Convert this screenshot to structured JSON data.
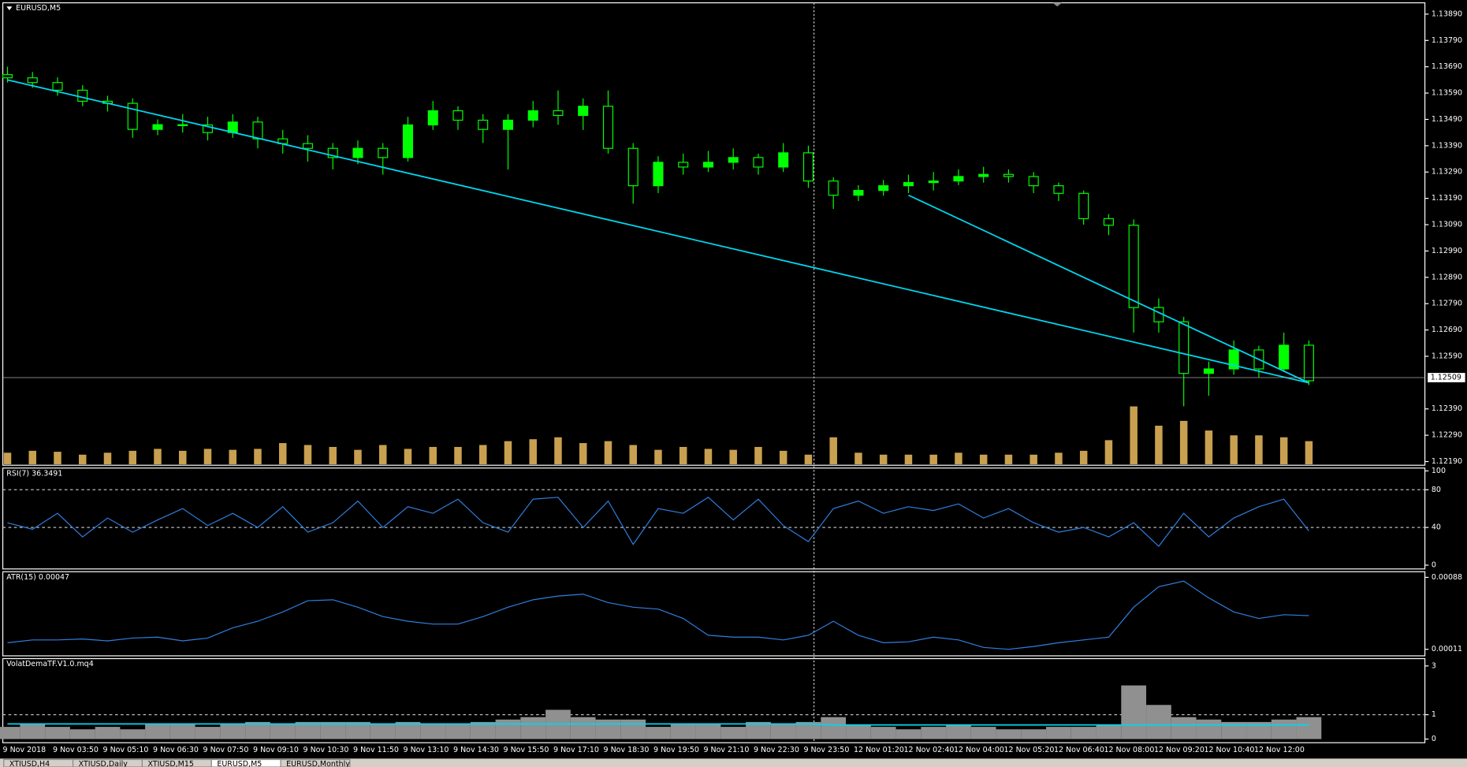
{
  "chart_data": [
    {
      "type": "candlestick",
      "title": "EURUSD,M5",
      "color": "#00ff00",
      "categories": [
        "9 Nov 2018",
        null,
        "9 Nov 03:50",
        null,
        "9 Nov 05:10",
        null,
        "9 Nov 06:30",
        null,
        "9 Nov 07:50",
        null,
        "9 Nov 09:10",
        null,
        "9 Nov 10:30",
        null,
        "9 Nov 11:50",
        null,
        "9 Nov 13:10",
        null,
        "9 Nov 14:30",
        null,
        "9 Nov 15:50",
        null,
        "9 Nov 17:10",
        null,
        "9 Nov 18:30",
        null,
        "9 Nov 19:50",
        null,
        "9 Nov 21:10",
        null,
        "9 Nov 22:30",
        null,
        "9 Nov 23:50",
        null,
        "12 Nov 01:20",
        null,
        "12 Nov 02:40",
        null,
        "12 Nov 04:00",
        null,
        "12 Nov 05:20",
        null,
        "12 Nov 06:40",
        null,
        "12 Nov 08:00",
        null,
        "12 Nov 09:20",
        null,
        "12 Nov 10:40",
        null,
        "12 Nov 12:00",
        null,
        null
      ],
      "open": [
        1.1366,
        1.13648,
        1.1363,
        1.13601,
        1.13559,
        1.13551,
        1.13452,
        1.1347,
        1.13469,
        1.1344,
        1.1348,
        1.13416,
        1.13398,
        1.1338,
        1.13345,
        1.1338,
        1.13345,
        1.13469,
        1.13523,
        1.13487,
        1.13452,
        1.13487,
        1.13523,
        1.13505,
        1.1354,
        1.1338,
        1.13238,
        1.13327,
        1.13309,
        1.13327,
        1.13345,
        1.13309,
        1.13363,
        1.13256,
        1.13202,
        1.1322,
        1.13238,
        1.1325,
        1.13256,
        1.13273,
        1.13281,
        1.13273,
        1.13238,
        1.13209,
        1.13113,
        1.13088,
        1.12775,
        1.12721,
        1.12525,
        1.12542,
        1.12614,
        1.12542,
        1.12632
      ],
      "high": [
        1.1369,
        1.1367,
        1.1365,
        1.1362,
        1.1358,
        1.1357,
        1.1349,
        1.1351,
        1.135,
        1.1351,
        1.135,
        1.1345,
        1.1343,
        1.134,
        1.1341,
        1.134,
        1.135,
        1.1356,
        1.1354,
        1.1351,
        1.1351,
        1.1356,
        1.136,
        1.1357,
        1.136,
        1.134,
        1.1335,
        1.1336,
        1.1337,
        1.1338,
        1.1336,
        1.134,
        1.1339,
        1.1327,
        1.1324,
        1.1326,
        1.1328,
        1.1329,
        1.133,
        1.1331,
        1.133,
        1.1329,
        1.1325,
        1.1322,
        1.1313,
        1.1311,
        1.1281,
        1.1274,
        1.1257,
        1.1265,
        1.1263,
        1.1268,
        1.1265
      ],
      "low": [
        1.1363,
        1.1361,
        1.1358,
        1.1354,
        1.1352,
        1.1342,
        1.1343,
        1.1344,
        1.1341,
        1.1342,
        1.1338,
        1.1336,
        1.1333,
        1.133,
        1.1332,
        1.1328,
        1.1333,
        1.1345,
        1.1345,
        1.134,
        1.133,
        1.1346,
        1.1347,
        1.1345,
        1.1336,
        1.1317,
        1.1321,
        1.1328,
        1.1329,
        1.133,
        1.1328,
        1.1329,
        1.1323,
        1.1315,
        1.1318,
        1.132,
        1.1321,
        1.1322,
        1.1324,
        1.1325,
        1.1325,
        1.1321,
        1.1318,
        1.1309,
        1.1305,
        1.1268,
        1.1268,
        1.124,
        1.1244,
        1.1252,
        1.1251,
        1.1253,
        1.1248
      ],
      "close": [
        1.13648,
        1.1363,
        1.13601,
        1.13559,
        1.13551,
        1.13452,
        1.1347,
        1.13469,
        1.1344,
        1.1348,
        1.13416,
        1.13398,
        1.1338,
        1.13345,
        1.1338,
        1.13345,
        1.13469,
        1.13523,
        1.13487,
        1.13452,
        1.13487,
        1.13523,
        1.13505,
        1.1354,
        1.1338,
        1.13238,
        1.13327,
        1.13309,
        1.13327,
        1.13345,
        1.13309,
        1.13363,
        1.13256,
        1.13202,
        1.1322,
        1.13238,
        1.1325,
        1.13256,
        1.13273,
        1.13281,
        1.13273,
        1.13238,
        1.13209,
        1.13113,
        1.13088,
        1.12775,
        1.12721,
        1.12525,
        1.12542,
        1.12614,
        1.12542,
        1.12632,
        1.12497
      ],
      "volume": [
        120,
        140,
        130,
        100,
        120,
        140,
        160,
        140,
        160,
        150,
        160,
        220,
        200,
        180,
        150,
        200,
        160,
        180,
        180,
        200,
        240,
        260,
        280,
        220,
        240,
        200,
        150,
        180,
        160,
        150,
        180,
        140,
        100,
        280,
        120,
        100,
        100,
        100,
        120,
        100,
        100,
        100,
        120,
        140,
        250,
        600,
        400,
        450,
        350,
        300,
        300,
        280,
        240
      ],
      "volume_color": "#c8a050",
      "ylim": [
        1.12176,
        1.13933
      ],
      "yticks": [
        {
          "value": 1.1389,
          "label": "1.13890"
        },
        {
          "value": 1.1379,
          "label": "1.13790"
        },
        {
          "value": 1.1369,
          "label": "1.13690"
        },
        {
          "value": 1.1359,
          "label": "1.13590"
        },
        {
          "value": 1.1349,
          "label": "1.13490"
        },
        {
          "value": 1.1339,
          "label": "1.13390"
        },
        {
          "value": 1.1329,
          "label": "1.13290"
        },
        {
          "value": 1.1319,
          "label": "1.13190"
        },
        {
          "value": 1.1309,
          "label": "1.13090"
        },
        {
          "value": 1.1299,
          "label": "1.12990"
        },
        {
          "value": 1.1289,
          "label": "1.12890"
        },
        {
          "value": 1.1279,
          "label": "1.12790"
        },
        {
          "value": 1.1269,
          "label": "1.12690"
        },
        {
          "value": 1.1259,
          "label": "1.12590"
        },
        {
          "value": 1.1239,
          "label": "1.12390"
        },
        {
          "value": 1.1229,
          "label": "1.12290"
        },
        {
          "value": 1.1219,
          "label": "1.12190"
        }
      ],
      "current_price": {
        "value": 1.12509,
        "label": "1.12509"
      },
      "trendlines": [
        {
          "from": [
            0,
            1.1364
          ],
          "to": [
            52,
            1.12489
          ],
          "color": "#00d7f0"
        },
        {
          "from": [
            36,
            1.13202
          ],
          "to": [
            52,
            1.12489
          ],
          "color": "#00d7f0"
        }
      ]
    },
    {
      "type": "line",
      "title": "RSI(7) 36.3491",
      "color": "#2f7fe0",
      "grid": "dashed",
      "values": [
        45,
        38,
        55,
        30,
        50,
        35,
        48,
        60,
        42,
        55,
        40,
        62,
        35,
        45,
        68,
        40,
        62,
        55,
        70,
        45,
        35,
        70,
        72,
        40,
        68,
        22,
        60,
        55,
        72,
        48,
        70,
        42,
        25,
        60,
        68,
        55,
        62,
        58,
        65,
        50,
        60,
        45,
        35,
        40,
        30,
        45,
        20,
        55,
        30,
        50,
        62,
        70,
        36.3491
      ],
      "ylim": [
        -4,
        103
      ],
      "yticks": [
        0,
        40,
        80,
        100
      ]
    },
    {
      "type": "line",
      "title": "ATR(15) 0.00047",
      "color": "#2f7fe0",
      "values": [
        0.00018,
        0.00021,
        0.00021,
        0.00022,
        0.0002,
        0.00023,
        0.00024,
        0.0002,
        0.00023,
        0.00034,
        0.00041,
        0.00051,
        0.00063,
        0.00064,
        0.00056,
        0.00046,
        0.00041,
        0.00038,
        0.00038,
        0.00046,
        0.00056,
        0.00064,
        0.00068,
        0.0007,
        0.00061,
        0.00056,
        0.00054,
        0.00044,
        0.00026,
        0.00024,
        0.00024,
        0.00021,
        0.00026,
        0.00041,
        0.00026,
        0.00018,
        0.00019,
        0.00024,
        0.00021,
        0.00013,
        0.00011,
        0.00014,
        0.00018,
        0.00021,
        0.00024,
        0.00056,
        0.00078,
        0.00084,
        0.00066,
        0.00051,
        0.00044,
        0.00048,
        0.00047
      ],
      "ylim": [
        4e-05,
        0.00094
      ],
      "yticks": [
        0.00011,
        0.00088
      ]
    },
    {
      "type": "histogram",
      "title": "VolatDemaTF.V1.0.mq4",
      "color": "#909090",
      "grid": "dashed",
      "values": [
        0.5,
        0.6,
        0.5,
        0.4,
        0.5,
        0.4,
        0.6,
        0.6,
        0.5,
        0.6,
        0.7,
        0.6,
        0.7,
        0.7,
        0.7,
        0.6,
        0.7,
        0.6,
        0.6,
        0.7,
        0.8,
        0.9,
        1.2,
        0.9,
        0.8,
        0.8,
        0.5,
        0.6,
        0.6,
        0.5,
        0.7,
        0.6,
        0.7,
        0.9,
        0.6,
        0.5,
        0.4,
        0.5,
        0.6,
        0.5,
        0.4,
        0.4,
        0.5,
        0.5,
        0.6,
        2.2,
        1.4,
        0.9,
        0.8,
        0.7,
        0.7,
        0.8,
        0.9
      ],
      "signal": [
        0.62,
        0.62,
        0.62,
        0.62,
        0.62,
        0.62,
        0.62,
        0.62,
        0.62,
        0.62,
        0.62,
        0.62,
        0.62,
        0.62,
        0.62,
        0.62,
        0.62,
        0.62,
        0.62,
        0.62,
        0.62,
        0.62,
        0.62,
        0.62,
        0.62,
        0.62,
        0.62,
        0.62,
        0.62,
        0.62,
        0.62,
        0.62,
        0.62,
        0.58,
        0.58,
        0.58,
        0.58,
        0.58,
        0.58,
        0.58,
        0.58,
        0.58,
        0.58,
        0.58,
        0.58,
        0.58,
        0.58,
        0.58,
        0.58,
        0.58,
        0.58,
        0.58,
        0.58
      ],
      "signal_color": "#00d7f0",
      "ylim": [
        -0.15,
        3.3
      ],
      "yticks": [
        0,
        1,
        3
      ]
    }
  ],
  "tabs": [
    "XTIUSD,H4",
    "XTIUSD,Daily",
    "XTIUSD,M15",
    "EURUSD,M5",
    "EURUSD,Monthly"
  ]
}
